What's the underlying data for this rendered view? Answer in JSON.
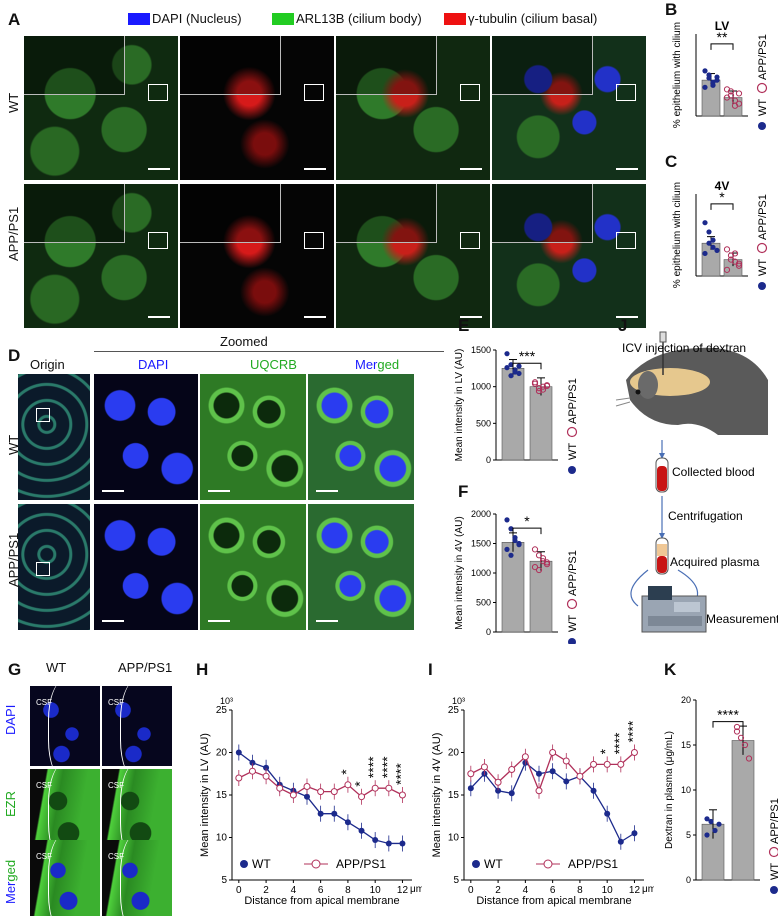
{
  "panels": {
    "A": "A",
    "B": "B",
    "C": "C",
    "D": "D",
    "E": "E",
    "F": "F",
    "G": "G",
    "H": "H",
    "I": "I",
    "J": "J",
    "K": "K"
  },
  "panel_a": {
    "legend": [
      {
        "label": "DAPI (Nucleus)",
        "color": "#1a1aff"
      },
      {
        "label": "ARL13B (cilium body)",
        "color": "#22cc22"
      },
      {
        "label": "γ-tubulin (cilium basal)",
        "color": "#ee1111"
      }
    ],
    "rows": [
      "WT",
      "APP/PS1"
    ]
  },
  "panel_d": {
    "zoomed_header": "Zoomed",
    "cols": {
      "origin": "Origin",
      "dapi": "DAPI",
      "uqcrb": "UQCRB",
      "merged_blue": "Mer",
      "merged_green": "ged"
    },
    "rows": [
      "WT",
      "APP/PS1"
    ]
  },
  "panel_g": {
    "cols": [
      "WT",
      "APP/PS1"
    ],
    "rows": {
      "dapi": "DAPI",
      "ezr": "EZR",
      "merged_blue": "Mer",
      "merged_green": "ged"
    },
    "csf": "CSF"
  },
  "panel_j": {
    "steps": [
      "ICV injection of dextran",
      "Collected blood",
      "Centrifugation",
      "Acquired plasma",
      "Measurement"
    ]
  },
  "colors": {
    "wt": "#1c2a8c",
    "app": "#b0305a",
    "bar": "#a9a9a9"
  },
  "chart_data": [
    {
      "id": "B",
      "type": "bar",
      "title": "LV",
      "ylabel": "% epithelium with cilium",
      "categories": [
        "WT",
        "APP/PS1"
      ],
      "values": [
        35,
        18
      ],
      "ylim": [
        0,
        80
      ],
      "points": [
        [
          44,
          37,
          30,
          35,
          28,
          40,
          33,
          38
        ],
        [
          26,
          20,
          15,
          12,
          18,
          24,
          10,
          22
        ]
      ],
      "significance": "**",
      "legend": [
        "WT",
        "APP/PS1"
      ]
    },
    {
      "id": "C",
      "type": "bar",
      "title": "4V",
      "ylabel": "% epithelium with cilium",
      "categories": [
        "WT",
        "APP/PS1"
      ],
      "values": [
        32,
        16
      ],
      "ylim": [
        0,
        80
      ],
      "points": [
        [
          52,
          43,
          35,
          25,
          22,
          32,
          28
        ],
        [
          26,
          20,
          14,
          10,
          6,
          16,
          22,
          12
        ]
      ],
      "significance": "*",
      "legend": [
        "WT",
        "APP/PS1"
      ]
    },
    {
      "id": "E",
      "type": "bar",
      "ylabel": "Mean  intensity in LV (AU)",
      "categories": [
        "WT",
        "APP/PS1"
      ],
      "values": [
        1250,
        1000
      ],
      "ylim": [
        0,
        1500
      ],
      "yticks": [
        0,
        500,
        1000,
        1500
      ],
      "points": [
        [
          1450,
          1300,
          1200,
          1180,
          1260,
          1150,
          1230,
          1280
        ],
        [
          1040,
          980,
          960,
          1010,
          1060,
          940,
          1000,
          1020
        ]
      ],
      "significance": "***",
      "legend": [
        "WT",
        "APP/PS1"
      ]
    },
    {
      "id": "F",
      "type": "bar",
      "ylabel": "Mean  intensity in 4V (AU)",
      "categories": [
        "WT",
        "APP/PS1"
      ],
      "values": [
        1520,
        1200
      ],
      "ylim": [
        0,
        2000
      ],
      "yticks": [
        0,
        500,
        1000,
        1500,
        2000
      ],
      "points": [
        [
          1900,
          1750,
          1600,
          1500,
          1400,
          1300,
          1550,
          1480
        ],
        [
          1400,
          1300,
          1250,
          1150,
          1100,
          1050,
          1200,
          1180
        ]
      ],
      "significance": "*",
      "legend": [
        "WT",
        "APP/PS1"
      ]
    },
    {
      "id": "H",
      "type": "line",
      "ylabel": "Mean  intensity in LV (AU)",
      "xlabel": "Distance from apical membrane",
      "x_unit": "μm",
      "y_multiplier": "10³",
      "x": [
        0,
        1,
        2,
        3,
        4,
        5,
        6,
        7,
        8,
        9,
        10,
        11,
        12
      ],
      "xticks": [
        0,
        2,
        4,
        6,
        8,
        10,
        12
      ],
      "yticks": [
        5,
        10,
        15,
        20,
        25
      ],
      "ylim": [
        5,
        25
      ],
      "xlim": [
        -0.5,
        12.7
      ],
      "series": [
        {
          "name": "WT",
          "values": [
            20,
            18.8,
            18.2,
            16.2,
            15.5,
            14.8,
            12.8,
            12.8,
            11.8,
            10.8,
            9.7,
            9.3,
            9.3
          ]
        },
        {
          "name": "APP/PS1",
          "values": [
            17,
            17.8,
            17.2,
            15.8,
            15.0,
            16.0,
            15.4,
            15.4,
            16.2,
            14.8,
            15.8,
            15.8,
            15.0
          ]
        }
      ],
      "significance": [
        {
          "x": 8,
          "label": "*"
        },
        {
          "x": 9,
          "label": "*"
        },
        {
          "x": 10,
          "label": "****"
        },
        {
          "x": 11,
          "label": "****"
        },
        {
          "x": 12,
          "label": "****"
        }
      ],
      "legend": [
        "WT",
        "APP/PS1"
      ]
    },
    {
      "id": "I",
      "type": "line",
      "ylabel": "Mean intensity in 4V (AU)",
      "xlabel": "Distance from apical membrane",
      "x_unit": "μm",
      "y_multiplier": "10³",
      "x": [
        0,
        1,
        2,
        3,
        4,
        5,
        6,
        7,
        8,
        9,
        10,
        11,
        12
      ],
      "xticks": [
        0,
        2,
        4,
        6,
        8,
        10,
        12
      ],
      "yticks": [
        5,
        10,
        15,
        20,
        25
      ],
      "ylim": [
        5,
        25
      ],
      "xlim": [
        -0.5,
        12.7
      ],
      "series": [
        {
          "name": "WT",
          "values": [
            15.8,
            17.5,
            15.5,
            15.2,
            18.8,
            17.5,
            17.8,
            16.6,
            17.2,
            15.5,
            12.8,
            9.5,
            10.5
          ]
        },
        {
          "name": "APP/PS1",
          "values": [
            17.5,
            18.3,
            16.5,
            18.0,
            19.5,
            15.5,
            20.0,
            19.0,
            17.2,
            18.6,
            18.6,
            18.6,
            20.0
          ]
        }
      ],
      "significance": [
        {
          "x": 10,
          "label": "*"
        },
        {
          "x": 11,
          "label": "****"
        },
        {
          "x": 12,
          "label": "****"
        }
      ],
      "legend": [
        "WT",
        "APP/PS1"
      ]
    },
    {
      "id": "K",
      "type": "bar",
      "ylabel": "Dextran in plasma (μg/mL)",
      "categories": [
        "WT",
        "APP/PS1"
      ],
      "values": [
        6.2,
        15.5
      ],
      "ylim": [
        0,
        20
      ],
      "yticks": [
        0,
        5,
        10,
        15,
        20
      ],
      "points": [
        [
          6.8,
          6.5,
          5.5,
          6.2,
          5.0
        ],
        [
          17.0,
          15.8,
          15.0,
          13.5,
          16.5
        ]
      ],
      "significance": "****",
      "legend": [
        "WT",
        "APP/PS1"
      ]
    }
  ]
}
